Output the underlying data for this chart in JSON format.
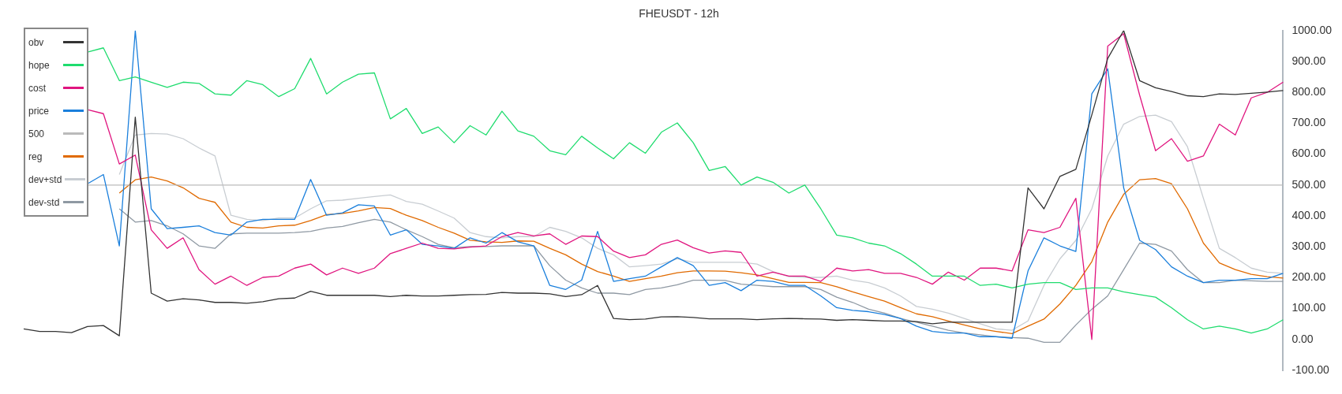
{
  "chart_data": {
    "type": "line",
    "title": "FHEUSDT - 12h",
    "categories": [
      null,
      null,
      null,
      null,
      null,
      null,
      null,
      null,
      null,
      null,
      null,
      null,
      null,
      null,
      null,
      null,
      null,
      null,
      null,
      null,
      null,
      null,
      null,
      null,
      null,
      null,
      null,
      null,
      null,
      null,
      null,
      null,
      null,
      null,
      null,
      null,
      null,
      null,
      null,
      null,
      null,
      null,
      null,
      null,
      null,
      null,
      null,
      null,
      null,
      null,
      null,
      null,
      null,
      null,
      null,
      null,
      null,
      null,
      null,
      null,
      null,
      null,
      null,
      null,
      null,
      null,
      null,
      null,
      null,
      null,
      null,
      null,
      null,
      null,
      null,
      null,
      null,
      null,
      null,
      null
    ],
    "series": [
      {
        "name": "obv",
        "color": "#333333",
        "values": [
          34,
          26,
          26,
          22,
          42,
          45,
          12,
          720,
          150,
          124,
          132,
          128,
          120,
          120,
          117,
          122,
          132,
          134,
          156,
          143,
          143,
          143,
          143,
          139,
          143,
          141,
          141,
          143,
          145,
          146,
          152,
          150,
          150,
          148,
          139,
          145,
          175,
          68,
          64,
          66,
          73,
          74,
          71,
          67,
          67,
          67,
          64,
          67,
          68,
          67,
          66,
          62,
          64,
          62,
          60,
          60,
          58,
          51,
          56,
          56,
          56,
          56,
          56,
          491,
          423,
          528,
          551,
          727,
          910,
          1000,
          838,
          815,
          803,
          789,
          786,
          795,
          793,
          797,
          801,
          806
        ]
      },
      {
        "name": "hope",
        "color": "#1fdc6e",
        "values": [
          null,
          null,
          null,
          null,
          930,
          944,
          838,
          850,
          833,
          816,
          833,
          829,
          795,
          791,
          838,
          825,
          786,
          812,
          910,
          795,
          833,
          859,
          863,
          714,
          748,
          667,
          688,
          637,
          692,
          662,
          739,
          675,
          658,
          611,
          598,
          658,
          620,
          585,
          637,
          603,
          671,
          701,
          637,
          547,
          560,
          500,
          526,
          509,
          474,
          500,
          423,
          338,
          329,
          312,
          303,
          278,
          244,
          205,
          205,
          205,
          175,
          179,
          167,
          179,
          184,
          184,
          162,
          167,
          167,
          154,
          145,
          137,
          103,
          64,
          34,
          43,
          34,
          21,
          34,
          64
        ]
      },
      {
        "name": "cost",
        "color": "#e0157f",
        "values": [
          null,
          null,
          null,
          null,
          744,
          731,
          568,
          597,
          355,
          295,
          329,
          226,
          179,
          205,
          175,
          201,
          205,
          231,
          244,
          209,
          231,
          214,
          231,
          278,
          295,
          312,
          295,
          293,
          299,
          303,
          333,
          346,
          335,
          342,
          308,
          335,
          333,
          286,
          265,
          274,
          308,
          322,
          297,
          280,
          287,
          282,
          205,
          218,
          205,
          205,
          188,
          231,
          222,
          226,
          214,
          214,
          201,
          179,
          218,
          192,
          231,
          231,
          222,
          355,
          346,
          363,
          457,
          0,
          950,
          990,
          791,
          611,
          650,
          577,
          594,
          697,
          662,
          782,
          800,
          833
        ]
      },
      {
        "name": "price",
        "color": "#1a7fdc",
        "values": [
          null,
          null,
          null,
          null,
          504,
          534,
          303,
          1000,
          423,
          359,
          363,
          368,
          346,
          338,
          380,
          389,
          389,
          389,
          518,
          402,
          410,
          436,
          432,
          338,
          355,
          308,
          303,
          295,
          329,
          312,
          346,
          316,
          303,
          175,
          162,
          192,
          350,
          188,
          197,
          205,
          235,
          265,
          239,
          175,
          184,
          158,
          192,
          188,
          175,
          175,
          141,
          103,
          94,
          90,
          81,
          68,
          43,
          26,
          21,
          21,
          9,
          9,
          4,
          222,
          329,
          303,
          285,
          795,
          876,
          491,
          321,
          291,
          235,
          205,
          184,
          192,
          192,
          197,
          197,
          214
        ]
      },
      {
        "name": "500",
        "color": "#bbbbbb",
        "values": [
          null,
          null,
          null,
          null,
          500,
          500,
          500,
          500,
          500,
          500,
          500,
          500,
          500,
          500,
          500,
          500,
          500,
          500,
          500,
          500,
          500,
          500,
          500,
          500,
          500,
          500,
          500,
          500,
          500,
          500,
          500,
          500,
          500,
          500,
          500,
          500,
          500,
          500,
          500,
          500,
          500,
          500,
          500,
          500,
          500,
          500,
          500,
          500,
          500,
          500,
          500,
          500,
          500,
          500,
          500,
          500,
          500,
          500,
          500,
          500,
          500,
          500,
          500,
          500,
          500,
          500,
          500,
          500,
          500,
          500,
          500,
          500,
          500,
          500,
          500,
          500,
          500,
          500,
          500,
          500
        ]
      },
      {
        "name": "reg",
        "color": "#e06a00",
        "values": [
          null,
          null,
          null,
          null,
          null,
          null,
          474,
          517,
          526,
          513,
          491,
          457,
          444,
          380,
          363,
          361,
          368,
          370,
          385,
          404,
          408,
          416,
          427,
          424,
          402,
          385,
          363,
          344,
          321,
          316,
          314,
          319,
          318,
          295,
          274,
          244,
          220,
          205,
          188,
          197,
          205,
          216,
          222,
          222,
          221,
          216,
          209,
          197,
          185,
          185,
          184,
          171,
          154,
          139,
          124,
          103,
          83,
          74,
          60,
          47,
          34,
          26,
          19,
          43,
          66,
          115,
          175,
          252,
          380,
          470,
          517,
          521,
          504,
          423,
          312,
          248,
          226,
          211,
          203,
          199
        ]
      },
      {
        "name": "dev+std",
        "color": "#c8cdd2",
        "values": [
          null,
          null,
          null,
          null,
          null,
          null,
          534,
          662,
          667,
          665,
          650,
          620,
          594,
          402,
          389,
          385,
          393,
          393,
          423,
          449,
          451,
          457,
          463,
          468,
          447,
          438,
          416,
          393,
          346,
          333,
          329,
          333,
          333,
          363,
          350,
          329,
          295,
          274,
          235,
          239,
          244,
          261,
          250,
          250,
          250,
          250,
          244,
          220,
          203,
          201,
          201,
          205,
          192,
          184,
          167,
          141,
          107,
          98,
          85,
          68,
          51,
          34,
          30,
          60,
          175,
          261,
          321,
          423,
          594,
          697,
          722,
          726,
          705,
          624,
          457,
          295,
          265,
          231,
          218,
          214
        ]
      },
      {
        "name": "dev-std",
        "color": "#8f99a3",
        "values": [
          null,
          null,
          null,
          null,
          null,
          null,
          423,
          380,
          385,
          368,
          342,
          303,
          295,
          342,
          344,
          344,
          344,
          346,
          350,
          361,
          366,
          378,
          389,
          380,
          355,
          333,
          308,
          297,
          301,
          301,
          303,
          303,
          303,
          239,
          192,
          167,
          150,
          150,
          145,
          162,
          167,
          177,
          192,
          192,
          191,
          179,
          175,
          171,
          171,
          171,
          162,
          137,
          120,
          98,
          85,
          68,
          56,
          43,
          30,
          21,
          15,
          9,
          6,
          4,
          -9,
          -9,
          47,
          98,
          141,
          226,
          312,
          308,
          286,
          226,
          184,
          184,
          192,
          190,
          188,
          188
        ]
      }
    ],
    "ylim": [
      -100,
      1000
    ],
    "yticks": [
      {
        "value": -100,
        "label": "-100.00"
      },
      {
        "value": 0,
        "label": "0.00"
      },
      {
        "value": 100,
        "label": "100.00"
      },
      {
        "value": 200,
        "label": "200.00"
      },
      {
        "value": 300,
        "label": "300.00"
      },
      {
        "value": 400,
        "label": "400.00"
      },
      {
        "value": 500,
        "label": "500.00"
      },
      {
        "value": 600,
        "label": "600.00"
      },
      {
        "value": 700,
        "label": "700.00"
      },
      {
        "value": 800,
        "label": "800.00"
      },
      {
        "value": 900,
        "label": "900.00"
      },
      {
        "value": 1000,
        "label": "1000.00"
      }
    ],
    "legend": "top left",
    "marker": "none",
    "line_style": "solid",
    "tick_labels": "y"
  }
}
